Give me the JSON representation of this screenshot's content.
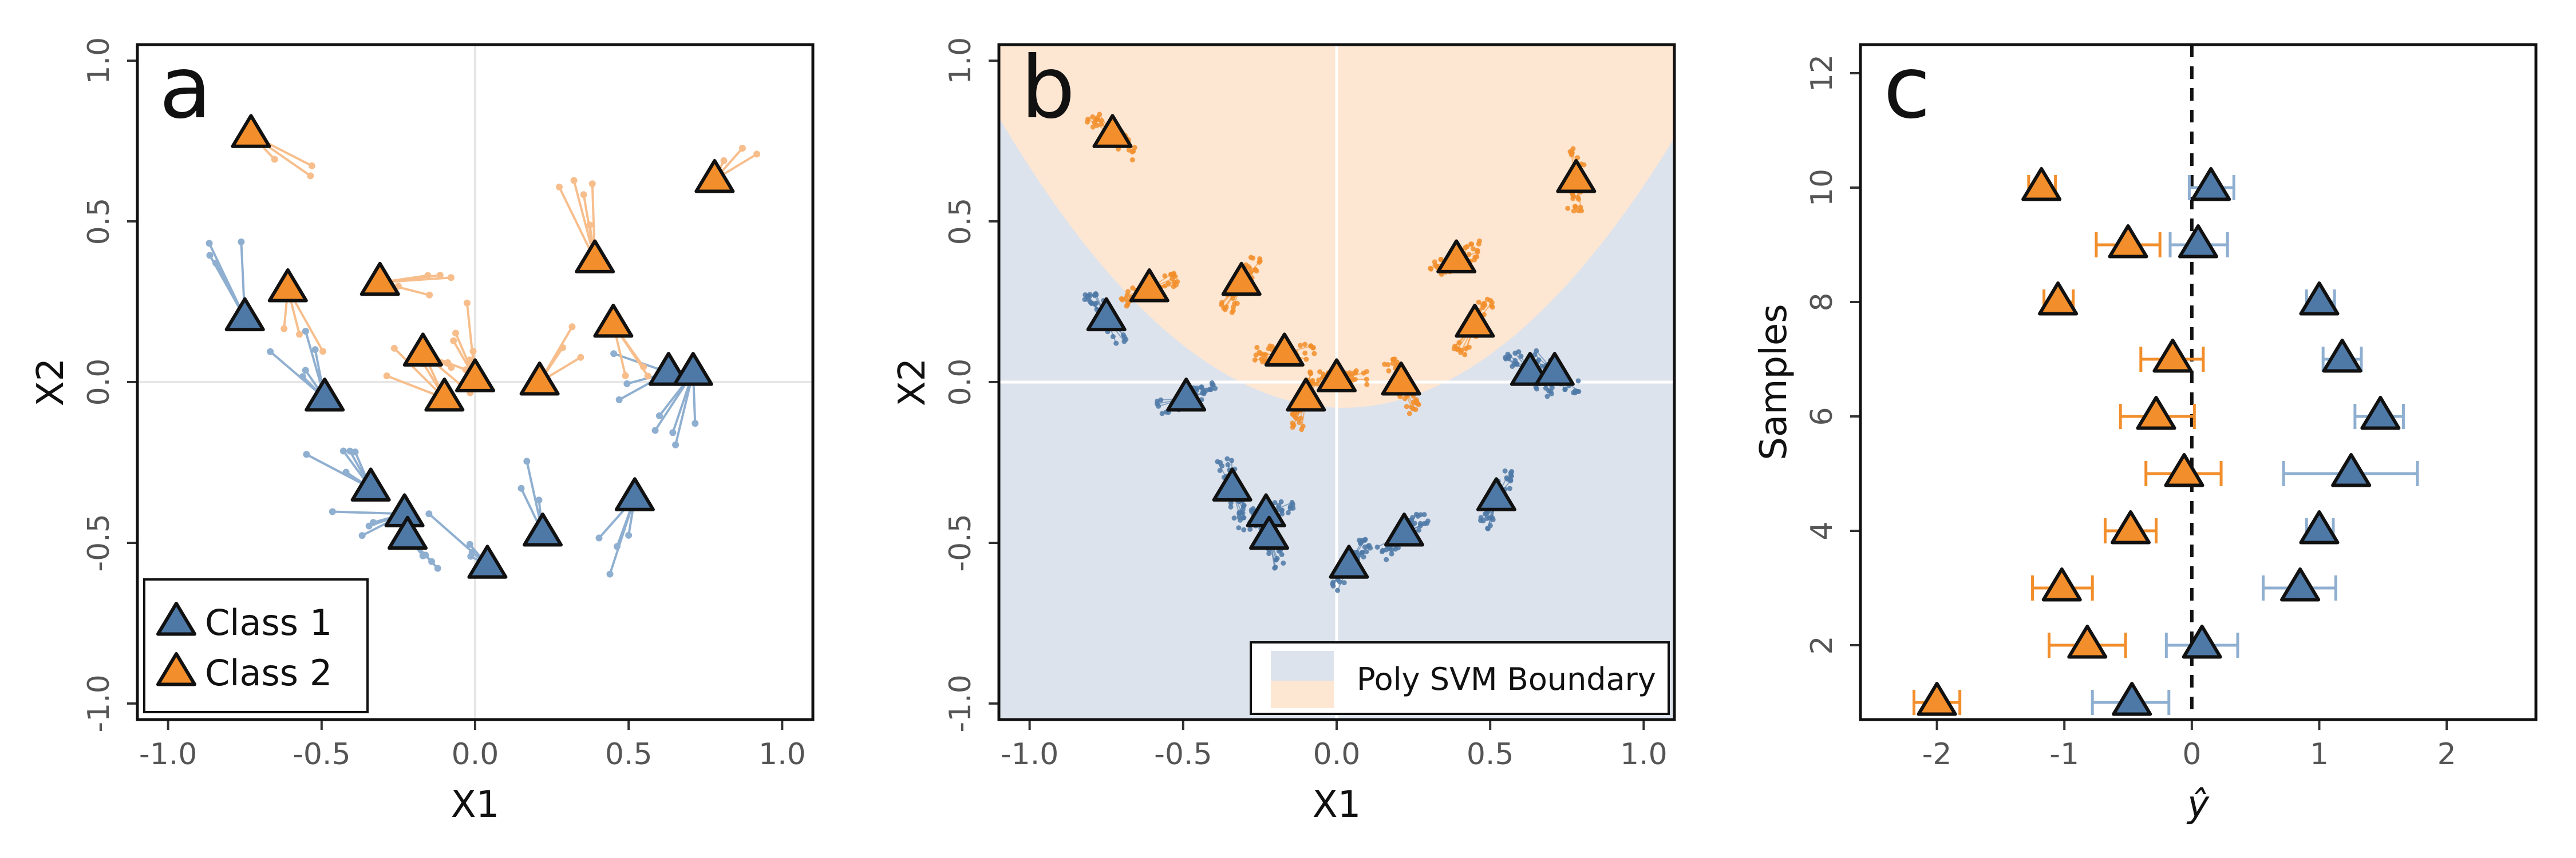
{
  "colors": {
    "class1": "#4E79A7",
    "class2": "#F28E2B",
    "class1_light": "#8FAFD0",
    "class2_light": "#F7BE8C",
    "region1": "#DDE3EC",
    "region2": "#FDE6D2"
  },
  "chart_data": [
    {
      "panel": "a",
      "type": "scatter",
      "xlabel": "X1",
      "ylabel": "X2",
      "xlim": [
        -1.1,
        1.1
      ],
      "ylim": [
        -1.05,
        1.05
      ],
      "xticks": [
        -1.0,
        -0.5,
        0.0,
        0.5,
        1.0
      ],
      "xtick_labels": [
        "-1.0",
        "-0.5",
        "0.0",
        "0.5",
        "1.0"
      ],
      "yticks": [
        -1.0,
        -0.5,
        0.0,
        0.5,
        1.0
      ],
      "ytick_labels": [
        "-1.0",
        "-0.5",
        "0.0",
        "0.5",
        "1.0"
      ],
      "legend": {
        "position": "bottom-left",
        "entries": [
          "Class 1",
          "Class 2"
        ]
      },
      "series": [
        {
          "name": "Class 1",
          "points": [
            [
              -0.75,
              0.2
            ],
            [
              -0.49,
              -0.05
            ],
            [
              -0.34,
              -0.33
            ],
            [
              -0.23,
              -0.41
            ],
            [
              -0.22,
              -0.48
            ],
            [
              0.04,
              -0.57
            ],
            [
              0.22,
              -0.47
            ],
            [
              0.52,
              -0.36
            ],
            [
              0.63,
              0.03
            ],
            [
              0.71,
              0.03
            ]
          ]
        },
        {
          "name": "Class 2",
          "points": [
            [
              -0.73,
              0.77
            ],
            [
              -0.61,
              0.29
            ],
            [
              -0.31,
              0.31
            ],
            [
              -0.17,
              0.09
            ],
            [
              -0.1,
              -0.05
            ],
            [
              0.0,
              0.01
            ],
            [
              0.21,
              0.0
            ],
            [
              0.39,
              0.38
            ],
            [
              0.45,
              0.18
            ],
            [
              0.78,
              0.63
            ]
          ]
        }
      ]
    },
    {
      "panel": "b",
      "type": "scatter",
      "xlabel": "X1",
      "ylabel": "X2",
      "xlim": [
        -1.1,
        1.1
      ],
      "ylim": [
        -1.05,
        1.05
      ],
      "xticks": [
        -1.0,
        -0.5,
        0.0,
        0.5,
        1.0
      ],
      "xtick_labels": [
        "-1.0",
        "-0.5",
        "0.0",
        "0.5",
        "1.0"
      ],
      "yticks": [
        -1.0,
        -0.5,
        0.0,
        0.5,
        1.0
      ],
      "ytick_labels": [
        "-1.0",
        "-0.5",
        "0.0",
        "0.5",
        "1.0"
      ],
      "legend": {
        "position": "bottom-right",
        "entries": [
          "Poly SVM Boundary"
        ]
      },
      "series": [
        {
          "name": "Class 1",
          "points": [
            [
              -0.75,
              0.2
            ],
            [
              -0.49,
              -0.05
            ],
            [
              -0.34,
              -0.33
            ],
            [
              -0.23,
              -0.41
            ],
            [
              -0.22,
              -0.48
            ],
            [
              0.04,
              -0.57
            ],
            [
              0.22,
              -0.47
            ],
            [
              0.52,
              -0.36
            ],
            [
              0.63,
              0.03
            ],
            [
              0.71,
              0.03
            ]
          ]
        },
        {
          "name": "Class 2",
          "points": [
            [
              -0.73,
              0.77
            ],
            [
              -0.61,
              0.29
            ],
            [
              -0.31,
              0.31
            ],
            [
              -0.17,
              0.09
            ],
            [
              -0.1,
              -0.05
            ],
            [
              0.0,
              0.01
            ],
            [
              0.21,
              0.0
            ],
            [
              0.39,
              0.38
            ],
            [
              0.45,
              0.18
            ],
            [
              0.78,
              0.63
            ]
          ]
        }
      ]
    },
    {
      "panel": "c",
      "type": "scatter",
      "xlabel": "ŷ",
      "ylabel": "Samples",
      "xlim": [
        -2.6,
        2.7
      ],
      "ylim": [
        0.7,
        12.5
      ],
      "xticks": [
        -2,
        -1,
        0,
        1,
        2
      ],
      "xtick_labels": [
        "-2",
        "-1",
        "0",
        "1",
        "2"
      ],
      "yticks": [
        2,
        4,
        6,
        8,
        10,
        12
      ],
      "ytick_labels": [
        "2",
        "4",
        "6",
        "8",
        "10",
        "12"
      ],
      "reference_line_x": 0,
      "series": [
        {
          "name": "Class 1",
          "points": [
            {
              "y": 1,
              "x": -0.47,
              "lo": -0.78,
              "hi": -0.18
            },
            {
              "y": 2,
              "x": 0.08,
              "lo": -0.2,
              "hi": 0.36
            },
            {
              "y": 3,
              "x": 0.85,
              "lo": 0.56,
              "hi": 1.13
            },
            {
              "y": 4,
              "x": 1.0,
              "lo": 0.9,
              "hi": 1.11
            },
            {
              "y": 5,
              "x": 1.25,
              "lo": 0.72,
              "hi": 1.77
            },
            {
              "y": 6,
              "x": 1.48,
              "lo": 1.28,
              "hi": 1.66
            },
            {
              "y": 7,
              "x": 1.18,
              "lo": 1.03,
              "hi": 1.33
            },
            {
              "y": 8,
              "x": 1.0,
              "lo": 0.9,
              "hi": 1.12
            },
            {
              "y": 9,
              "x": 0.05,
              "lo": -0.17,
              "hi": 0.28
            },
            {
              "y": 10,
              "x": 0.15,
              "lo": -0.02,
              "hi": 0.33
            }
          ]
        },
        {
          "name": "Class 2",
          "points": [
            {
              "y": 1,
              "x": -2.0,
              "lo": -2.18,
              "hi": -1.82
            },
            {
              "y": 2,
              "x": -0.82,
              "lo": -1.12,
              "hi": -0.52
            },
            {
              "y": 3,
              "x": -1.02,
              "lo": -1.25,
              "hi": -0.78
            },
            {
              "y": 4,
              "x": -0.48,
              "lo": -0.68,
              "hi": -0.28
            },
            {
              "y": 5,
              "x": -0.06,
              "lo": -0.36,
              "hi": 0.23
            },
            {
              "y": 6,
              "x": -0.28,
              "lo": -0.56,
              "hi": 0.02
            },
            {
              "y": 7,
              "x": -0.15,
              "lo": -0.4,
              "hi": 0.09
            },
            {
              "y": 8,
              "x": -1.05,
              "lo": -1.16,
              "hi": -0.93
            },
            {
              "y": 9,
              "x": -0.5,
              "lo": -0.75,
              "hi": -0.25
            },
            {
              "y": 10,
              "x": -1.18,
              "lo": -1.28,
              "hi": -1.07
            }
          ]
        }
      ]
    }
  ]
}
